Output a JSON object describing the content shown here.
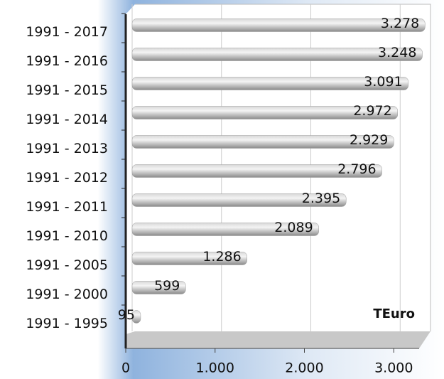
{
  "chart_data": {
    "type": "hbar",
    "categories": [
      "1991 - 2017",
      "1991 - 2016",
      "1991 - 2015",
      "1991 - 2014",
      "1991 - 2013",
      "1991 - 2012",
      "1991 - 2011",
      "1991 - 2010",
      "1991 - 2005",
      "1991 - 2000",
      "1991 - 1995"
    ],
    "values": [
      3278,
      3248,
      3091,
      2972,
      2929,
      2796,
      2395,
      2089,
      1286,
      599,
      95
    ],
    "value_labels": [
      "3.278",
      "3.248",
      "3.091",
      "2.972",
      "2.929",
      "2.796",
      "2.395",
      "2.089",
      "1.286",
      "599",
      "95"
    ],
    "color": "#b8b8b8",
    "xlim": [
      0,
      3300
    ],
    "xticks": [
      0,
      {
        "value": 1000,
        "label": "1.000"
      },
      {
        "value": 2000,
        "label": "2.000"
      },
      {
        "value": 3000,
        "label": "3.000"
      }
    ],
    "grid": true,
    "annotation": "TEuro"
  }
}
